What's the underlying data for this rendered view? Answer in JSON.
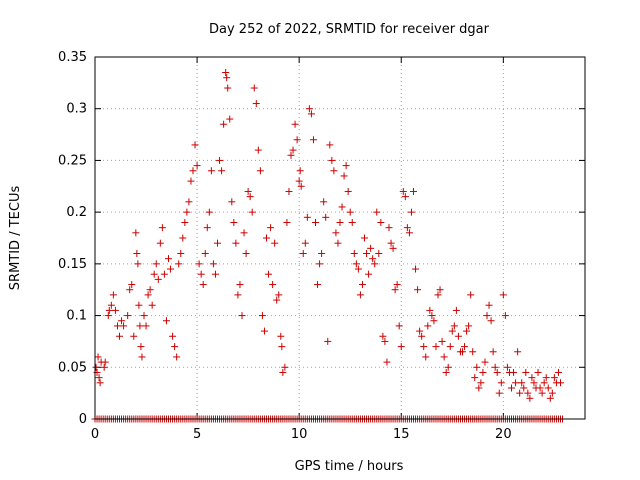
{
  "chart_data": {
    "type": "scatter",
    "title": "Day 252 of 2022, SRMTID for receiver dgar",
    "xlabel": "GPS time / hours",
    "ylabel": "SRMTID / TECUs",
    "xlim": [
      0,
      24
    ],
    "ylim": [
      0,
      0.35
    ],
    "x_ticks": [
      0,
      5,
      10,
      15,
      20
    ],
    "y_ticks": [
      0,
      0.05,
      0.1,
      0.15,
      0.2,
      0.25,
      0.3,
      0.35
    ],
    "x_tick_labels": [
      "0",
      "5",
      "10",
      "15",
      "20"
    ],
    "y_tick_labels": [
      "0",
      "0.05",
      "0.1",
      "0.15",
      "0.2",
      "0.25",
      "0.3",
      "0.35"
    ],
    "grid": true,
    "marker": "+",
    "color": "#cc0000",
    "series": [
      {
        "name": "SRMTID",
        "points": [
          [
            0.05,
            0.05
          ],
          [
            0.1,
            0.045
          ],
          [
            0.15,
            0.06
          ],
          [
            0.2,
            0.04
          ],
          [
            0.25,
            0.035
          ],
          [
            0.3,
            0.055
          ],
          [
            0.45,
            0.05
          ],
          [
            0.5,
            0.055
          ],
          [
            0.65,
            0.1
          ],
          [
            0.7,
            0.105
          ],
          [
            0.8,
            0.11
          ],
          [
            0.9,
            0.12
          ],
          [
            1.0,
            0.105
          ],
          [
            1.1,
            0.09
          ],
          [
            1.2,
            0.08
          ],
          [
            1.3,
            0.095
          ],
          [
            1.4,
            0.09
          ],
          [
            1.6,
            0.1
          ],
          [
            1.7,
            0.125
          ],
          [
            1.8,
            0.13
          ],
          [
            1.9,
            0.08
          ],
          [
            2.0,
            0.18
          ],
          [
            2.05,
            0.16
          ],
          [
            2.1,
            0.15
          ],
          [
            2.15,
            0.11
          ],
          [
            2.2,
            0.09
          ],
          [
            2.25,
            0.07
          ],
          [
            2.3,
            0.06
          ],
          [
            2.4,
            0.1
          ],
          [
            2.5,
            0.09
          ],
          [
            2.6,
            0.12
          ],
          [
            2.7,
            0.125
          ],
          [
            2.8,
            0.11
          ],
          [
            2.9,
            0.14
          ],
          [
            3.0,
            0.15
          ],
          [
            3.1,
            0.135
          ],
          [
            3.2,
            0.17
          ],
          [
            3.3,
            0.185
          ],
          [
            3.4,
            0.14
          ],
          [
            3.5,
            0.095
          ],
          [
            3.6,
            0.155
          ],
          [
            3.7,
            0.145
          ],
          [
            3.8,
            0.08
          ],
          [
            3.9,
            0.07
          ],
          [
            4.0,
            0.06
          ],
          [
            4.1,
            0.15
          ],
          [
            4.2,
            0.16
          ],
          [
            4.3,
            0.175
          ],
          [
            4.4,
            0.19
          ],
          [
            4.5,
            0.2
          ],
          [
            4.6,
            0.21
          ],
          [
            4.7,
            0.23
          ],
          [
            4.8,
            0.24
          ],
          [
            4.9,
            0.265
          ],
          [
            5.0,
            0.245
          ],
          [
            5.1,
            0.15
          ],
          [
            5.2,
            0.14
          ],
          [
            5.3,
            0.13
          ],
          [
            5.4,
            0.16
          ],
          [
            5.5,
            0.185
          ],
          [
            5.6,
            0.2
          ],
          [
            5.7,
            0.24
          ],
          [
            5.8,
            0.15
          ],
          [
            5.9,
            0.14
          ],
          [
            6.0,
            0.17
          ],
          [
            6.1,
            0.25
          ],
          [
            6.2,
            0.24
          ],
          [
            6.3,
            0.285
          ],
          [
            6.4,
            0.335
          ],
          [
            6.45,
            0.33
          ],
          [
            6.5,
            0.32
          ],
          [
            6.6,
            0.29
          ],
          [
            6.7,
            0.21
          ],
          [
            6.8,
            0.19
          ],
          [
            6.9,
            0.17
          ],
          [
            7.0,
            0.12
          ],
          [
            7.1,
            0.13
          ],
          [
            7.2,
            0.1
          ],
          [
            7.3,
            0.18
          ],
          [
            7.4,
            0.16
          ],
          [
            7.5,
            0.22
          ],
          [
            7.6,
            0.215
          ],
          [
            7.7,
            0.2
          ],
          [
            7.8,
            0.32
          ],
          [
            7.9,
            0.305
          ],
          [
            8.0,
            0.26
          ],
          [
            8.1,
            0.24
          ],
          [
            8.2,
            0.1
          ],
          [
            8.3,
            0.085
          ],
          [
            8.4,
            0.175
          ],
          [
            8.5,
            0.14
          ],
          [
            8.6,
            0.185
          ],
          [
            8.7,
            0.13
          ],
          [
            8.8,
            0.17
          ],
          [
            8.9,
            0.115
          ],
          [
            9.0,
            0.12
          ],
          [
            9.1,
            0.08
          ],
          [
            9.15,
            0.07
          ],
          [
            9.2,
            0.045
          ],
          [
            9.3,
            0.05
          ],
          [
            9.4,
            0.19
          ],
          [
            9.5,
            0.22
          ],
          [
            9.6,
            0.255
          ],
          [
            9.7,
            0.26
          ],
          [
            9.8,
            0.285
          ],
          [
            9.9,
            0.27
          ],
          [
            10.0,
            0.23
          ],
          [
            10.05,
            0.24
          ],
          [
            10.1,
            0.225
          ],
          [
            10.2,
            0.16
          ],
          [
            10.3,
            0.17
          ],
          [
            10.4,
            0.195
          ],
          [
            10.5,
            0.3
          ],
          [
            10.6,
            0.295
          ],
          [
            10.7,
            0.27
          ],
          [
            10.8,
            0.19
          ],
          [
            10.9,
            0.13
          ],
          [
            11.0,
            0.15
          ],
          [
            11.1,
            0.16
          ],
          [
            11.2,
            0.21
          ],
          [
            11.3,
            0.195
          ],
          [
            11.4,
            0.075
          ],
          [
            11.5,
            0.265
          ],
          [
            11.6,
            0.25
          ],
          [
            11.7,
            0.24
          ],
          [
            11.8,
            0.18
          ],
          [
            11.9,
            0.17
          ],
          [
            12.0,
            0.19
          ],
          [
            12.1,
            0.205
          ],
          [
            12.2,
            0.235
          ],
          [
            12.3,
            0.245
          ],
          [
            12.4,
            0.22
          ],
          [
            12.5,
            0.2
          ],
          [
            12.6,
            0.19
          ],
          [
            12.7,
            0.16
          ],
          [
            12.8,
            0.15
          ],
          [
            12.9,
            0.145
          ],
          [
            13.0,
            0.12
          ],
          [
            13.1,
            0.13
          ],
          [
            13.2,
            0.175
          ],
          [
            13.3,
            0.16
          ],
          [
            13.4,
            0.14
          ],
          [
            13.5,
            0.165
          ],
          [
            13.6,
            0.155
          ],
          [
            13.7,
            0.15
          ],
          [
            13.8,
            0.2
          ],
          [
            13.9,
            0.16
          ],
          [
            14.0,
            0.19
          ],
          [
            14.1,
            0.08
          ],
          [
            14.2,
            0.075
          ],
          [
            14.3,
            0.055
          ],
          [
            14.4,
            0.185
          ],
          [
            14.5,
            0.17
          ],
          [
            14.6,
            0.165
          ],
          [
            14.7,
            0.125
          ],
          [
            14.8,
            0.13
          ],
          [
            14.9,
            0.09
          ],
          [
            15.0,
            0.07
          ],
          [
            15.1,
            0.22
          ],
          [
            15.2,
            0.215
          ],
          [
            15.3,
            0.185
          ],
          [
            15.4,
            0.18
          ],
          [
            15.5,
            0.2
          ],
          [
            15.6,
            0.22
          ],
          [
            15.7,
            0.145
          ],
          [
            15.8,
            0.125
          ],
          [
            15.9,
            0.085
          ],
          [
            16.0,
            0.08
          ],
          [
            16.1,
            0.07
          ],
          [
            16.2,
            0.06
          ],
          [
            16.3,
            0.09
          ],
          [
            16.4,
            0.105
          ],
          [
            16.5,
            0.1
          ],
          [
            16.6,
            0.095
          ],
          [
            16.7,
            0.07
          ],
          [
            16.8,
            0.12
          ],
          [
            16.9,
            0.125
          ],
          [
            17.0,
            0.075
          ],
          [
            17.1,
            0.06
          ],
          [
            17.2,
            0.045
          ],
          [
            17.3,
            0.05
          ],
          [
            17.4,
            0.07
          ],
          [
            17.5,
            0.085
          ],
          [
            17.6,
            0.09
          ],
          [
            17.7,
            0.105
          ],
          [
            17.8,
            0.08
          ],
          [
            17.9,
            0.065
          ],
          [
            18.0,
            0.065
          ],
          [
            18.1,
            0.07
          ],
          [
            18.2,
            0.085
          ],
          [
            18.3,
            0.09
          ],
          [
            18.4,
            0.12
          ],
          [
            18.5,
            0.065
          ],
          [
            18.6,
            0.04
          ],
          [
            18.7,
            0.05
          ],
          [
            18.8,
            0.03
          ],
          [
            18.9,
            0.035
          ],
          [
            19.0,
            0.045
          ],
          [
            19.1,
            0.055
          ],
          [
            19.2,
            0.1
          ],
          [
            19.3,
            0.11
          ],
          [
            19.4,
            0.095
          ],
          [
            19.5,
            0.065
          ],
          [
            19.6,
            0.05
          ],
          [
            19.7,
            0.045
          ],
          [
            19.8,
            0.025
          ],
          [
            19.9,
            0.035
          ],
          [
            20.0,
            0.12
          ],
          [
            20.1,
            0.1
          ],
          [
            20.2,
            0.05
          ],
          [
            20.3,
            0.045
          ],
          [
            20.4,
            0.03
          ],
          [
            20.5,
            0.045
          ],
          [
            20.6,
            0.035
          ],
          [
            20.7,
            0.065
          ],
          [
            20.8,
            0.025
          ],
          [
            20.9,
            0.035
          ],
          [
            21.0,
            0.03
          ],
          [
            21.1,
            0.045
          ],
          [
            21.2,
            0.025
          ],
          [
            21.3,
            0.02
          ],
          [
            21.4,
            0.04
          ],
          [
            21.5,
            0.035
          ],
          [
            21.6,
            0.03
          ],
          [
            21.7,
            0.045
          ],
          [
            21.8,
            0.03
          ],
          [
            21.9,
            0.025
          ],
          [
            22.0,
            0.035
          ],
          [
            22.1,
            0.04
          ],
          [
            22.2,
            0.03
          ],
          [
            22.3,
            0.02
          ],
          [
            22.4,
            0.025
          ],
          [
            22.5,
            0.04
          ],
          [
            22.6,
            0.035
          ],
          [
            22.7,
            0.045
          ],
          [
            22.8,
            0.035
          ]
        ],
        "zeros_range_1": [
          0,
          2.4
        ],
        "zeros_range_2": [
          2.5,
          22.9
        ],
        "zeros_step": 0.1
      }
    ]
  }
}
